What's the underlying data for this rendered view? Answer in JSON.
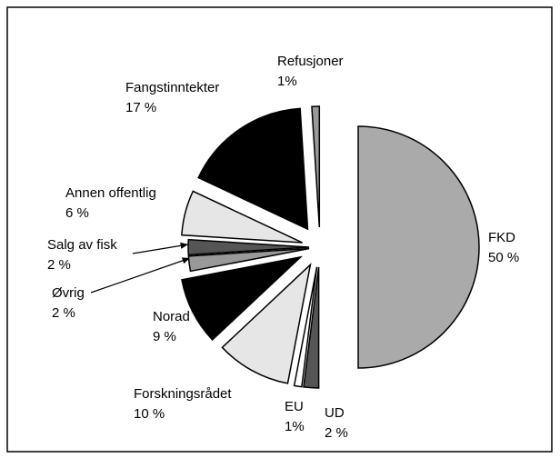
{
  "chart_data": {
    "type": "pie",
    "categories": [
      "FKD",
      "UD",
      "EU",
      "Forskningsrådet",
      "Norad",
      "Øvrig",
      "Salg av fisk",
      "Annen offentlig",
      "Fangstinntekter",
      "Refusjoner"
    ],
    "values": [
      50,
      2,
      1,
      10,
      9,
      2,
      2,
      6,
      17,
      1
    ],
    "value_labels": [
      "50 %",
      "2 %",
      "1%",
      "10 %",
      "9 %",
      "2 %",
      "2 %",
      "6 %",
      "17 %",
      "1%"
    ],
    "colors": [
      "#aaaaaa",
      "#555555",
      "#ffffff",
      "#e6e6e6",
      "#000000",
      "#999999",
      "#555555",
      "#e6e6e6",
      "#000000",
      "#999999"
    ]
  }
}
